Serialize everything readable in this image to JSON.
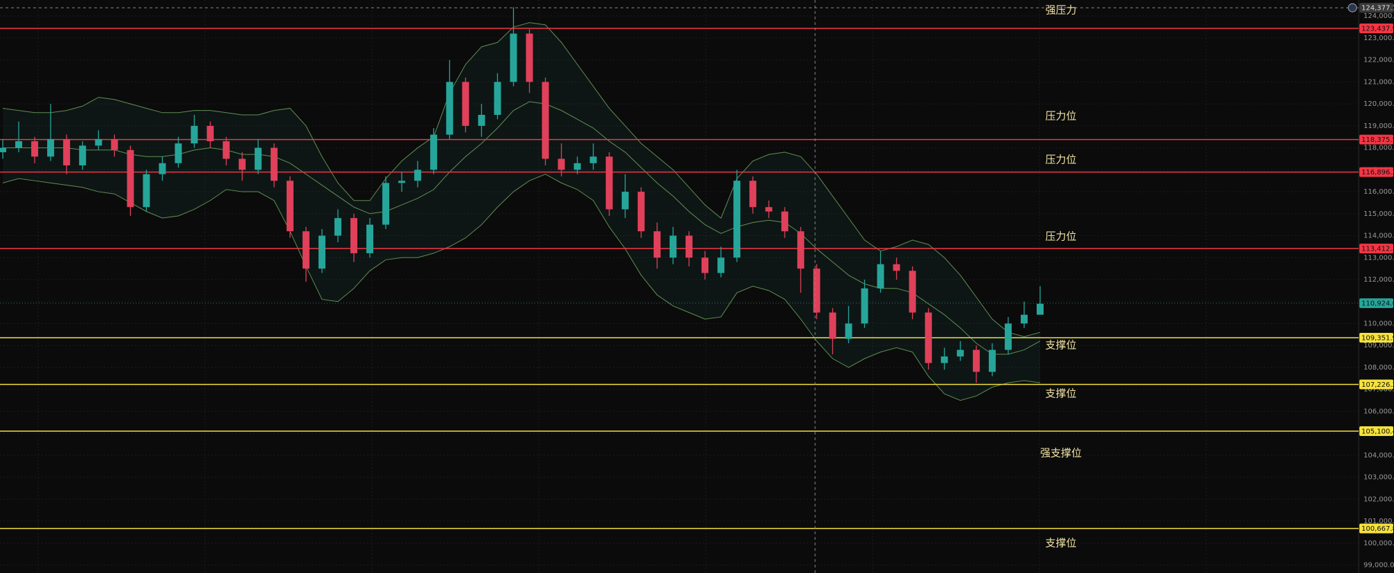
{
  "chart_data": {
    "type": "candlestick",
    "ylim": [
      98640,
      124730
    ],
    "yticks": [
      {
        "value": 99000,
        "label": "99,000.0"
      },
      {
        "value": 100000,
        "label": "100,000.0"
      },
      {
        "value": 101000,
        "label": "101,000.0"
      },
      {
        "value": 102000,
        "label": "102,000.0"
      },
      {
        "value": 103000,
        "label": "103,000.0"
      },
      {
        "value": 104000,
        "label": "104,000.0"
      },
      {
        "value": 105000,
        "label": "105,000.0"
      },
      {
        "value": 106000,
        "label": "106,000.0"
      },
      {
        "value": 107000,
        "label": "107,000.0"
      },
      {
        "value": 108000,
        "label": "108,000.0"
      },
      {
        "value": 109000,
        "label": "109,000.0"
      },
      {
        "value": 110000,
        "label": "110,000.0"
      },
      {
        "value": 111000,
        "label": "111,000.0"
      },
      {
        "value": 112000,
        "label": "112,000.0"
      },
      {
        "value": 113000,
        "label": "113,000.0"
      },
      {
        "value": 114000,
        "label": "114,000.0"
      },
      {
        "value": 115000,
        "label": "115,000.0"
      },
      {
        "value": 116000,
        "label": "116,000.0"
      },
      {
        "value": 117000,
        "label": "117,000.0"
      },
      {
        "value": 118000,
        "label": "118,000.0"
      },
      {
        "value": 119000,
        "label": "119,000.0"
      },
      {
        "value": 120000,
        "label": "120,000.0"
      },
      {
        "value": 121000,
        "label": "121,000.0"
      },
      {
        "value": 122000,
        "label": "122,000.0"
      },
      {
        "value": 123000,
        "label": "123,000.0"
      },
      {
        "value": 124000,
        "label": "124,000.0"
      }
    ],
    "grid": true,
    "up_color": "#26a69a",
    "down_color": "#e0405a",
    "band_color": "#7fb86a",
    "candles": {
      "open": [
        117800,
        118000,
        118300,
        117600,
        118400,
        117200,
        118100,
        118400,
        117900,
        115300,
        116800,
        117300,
        118200,
        119000,
        118300,
        117500,
        117000,
        118000,
        116500,
        114200,
        112500,
        114000,
        114800,
        113200,
        114500,
        116400,
        116500,
        117000,
        118600,
        121000,
        119000,
        119500,
        121000,
        123200,
        121000,
        117500,
        117000,
        117300,
        117600,
        115200,
        116000,
        114200,
        113000,
        114000,
        113000,
        112300,
        113000,
        116500,
        115300,
        115100,
        114200,
        112500,
        110500,
        109300,
        110000,
        111600,
        112700,
        112400,
        110500,
        108200,
        108500,
        108800,
        107800,
        108800,
        110000,
        110400
      ],
      "high": [
        118400,
        119200,
        118500,
        120000,
        118600,
        118300,
        118800,
        118600,
        118100,
        117000,
        117600,
        118500,
        119500,
        119200,
        118500,
        117800,
        118400,
        118200,
        116700,
        114400,
        114300,
        115200,
        115000,
        114800,
        116700,
        116900,
        117400,
        118900,
        122000,
        121200,
        120000,
        121400,
        124400,
        123400,
        121200,
        118200,
        117600,
        118200,
        117800,
        116800,
        116200,
        114600,
        114400,
        114200,
        113300,
        113500,
        117000,
        116700,
        115600,
        115300,
        114400,
        112700,
        110700,
        110800,
        112000,
        113300,
        113000,
        112600,
        110700,
        108900,
        109200,
        109000,
        109100,
        110300,
        111000,
        111700
      ],
      "low": [
        117500,
        117800,
        117300,
        117400,
        116800,
        117000,
        117900,
        117600,
        114900,
        115100,
        116500,
        117100,
        118000,
        118000,
        117200,
        116500,
        116800,
        116200,
        113900,
        111900,
        112300,
        113700,
        112800,
        113000,
        114300,
        116000,
        116200,
        116800,
        118400,
        118700,
        118500,
        119300,
        120800,
        120500,
        117200,
        116700,
        116800,
        117000,
        114900,
        114800,
        113900,
        112500,
        112700,
        112600,
        112000,
        112100,
        112800,
        115000,
        114800,
        113900,
        111400,
        110200,
        108600,
        109100,
        109800,
        111400,
        112000,
        110200,
        107900,
        107900,
        108300,
        107300,
        107600,
        108600,
        109800,
        110600
      ],
      "close": [
        118000,
        118300,
        117600,
        118400,
        117200,
        118100,
        118400,
        117900,
        115300,
        116800,
        117300,
        118200,
        119000,
        118300,
        117500,
        117000,
        118000,
        116500,
        114200,
        112500,
        114000,
        114800,
        113200,
        114500,
        116400,
        116500,
        117000,
        118600,
        121000,
        119000,
        119500,
        121000,
        123200,
        121000,
        117500,
        117000,
        117300,
        117600,
        115200,
        116000,
        114200,
        113000,
        114000,
        113000,
        112300,
        113000,
        116500,
        115300,
        115100,
        114200,
        112500,
        110500,
        109300,
        110000,
        111600,
        112700,
        112400,
        110500,
        108200,
        108500,
        108800,
        107800,
        108800,
        110000,
        110400,
        110900
      ]
    },
    "bands": {
      "upper": [
        119800,
        119700,
        119600,
        119600,
        119700,
        119900,
        120300,
        120200,
        120000,
        119800,
        119600,
        119600,
        119700,
        119700,
        119600,
        119500,
        119500,
        119700,
        119800,
        119000,
        117600,
        116400,
        115600,
        115600,
        116600,
        117400,
        118000,
        118500,
        120500,
        121800,
        122600,
        122800,
        123500,
        123700,
        123600,
        122800,
        121800,
        120800,
        119800,
        119000,
        118200,
        117600,
        117000,
        116200,
        115400,
        114800,
        116600,
        117400,
        117700,
        117800,
        117600,
        116800,
        115800,
        114800,
        113800,
        113300,
        113500,
        113800,
        113600,
        113000,
        112200,
        111200,
        110200,
        109600,
        109400,
        109600
      ],
      "middle": [
        118000,
        118000,
        118000,
        118000,
        118000,
        117900,
        117900,
        117900,
        117700,
        117600,
        117600,
        117700,
        117900,
        118000,
        117900,
        117700,
        117700,
        117600,
        117300,
        116800,
        116300,
        115800,
        115300,
        115000,
        115100,
        115400,
        115700,
        116100,
        116900,
        117600,
        118200,
        118900,
        119700,
        120100,
        120000,
        119700,
        119300,
        118900,
        118300,
        117800,
        117100,
        116400,
        115800,
        115100,
        114500,
        114100,
        114400,
        114600,
        114700,
        114600,
        114100,
        113400,
        112800,
        112200,
        111800,
        111600,
        111600,
        111400,
        110900,
        110400,
        109800,
        109100,
        108600,
        108600,
        108800,
        109200
      ],
      "lower": [
        116400,
        116600,
        116500,
        116400,
        116300,
        116200,
        116000,
        115900,
        115500,
        115100,
        114800,
        114900,
        115200,
        115600,
        116100,
        116000,
        116000,
        115600,
        114200,
        112600,
        111100,
        111000,
        111600,
        112400,
        112900,
        113000,
        113000,
        113200,
        113500,
        113900,
        114500,
        115300,
        116000,
        116500,
        116800,
        116400,
        116100,
        115600,
        114400,
        113400,
        112200,
        111300,
        110800,
        110500,
        110200,
        110300,
        111400,
        111700,
        111500,
        111100,
        110200,
        109200,
        108400,
        108000,
        108400,
        108700,
        108900,
        108700,
        107600,
        106800,
        106500,
        106700,
        107100,
        107300,
        107400,
        107300
      ]
    },
    "levels": [
      {
        "value": 123437.9,
        "label": "123,437.9",
        "color": "#f23645"
      },
      {
        "value": 118375.5,
        "label": "118,375.5",
        "color": "#f23645"
      },
      {
        "value": 116896.2,
        "label": "116,896.2",
        "color": "#f23645"
      },
      {
        "value": 113412.3,
        "label": "113,412.3",
        "color": "#f23645"
      },
      {
        "value": 109351.9,
        "label": "109,351.9",
        "color": "#f5e23c"
      },
      {
        "value": 107226.2,
        "label": "107,226.2",
        "color": "#f5e23c"
      },
      {
        "value": 105100.4,
        "label": "105,100.4",
        "color": "#f5e23c"
      },
      {
        "value": 100667.8,
        "label": "100,667.8",
        "color": "#f5e23c"
      }
    ],
    "last_price": {
      "value": 110924.0,
      "label": "110,924.0",
      "color": "#26a69a"
    },
    "crosshair": {
      "value": 124377.1,
      "label": "124,377.1"
    },
    "annotations": [
      "强压力",
      "压力位",
      "压力位",
      "压力位",
      "支撑位",
      "支撑位",
      "强支撑位",
      "支撑位"
    ]
  }
}
